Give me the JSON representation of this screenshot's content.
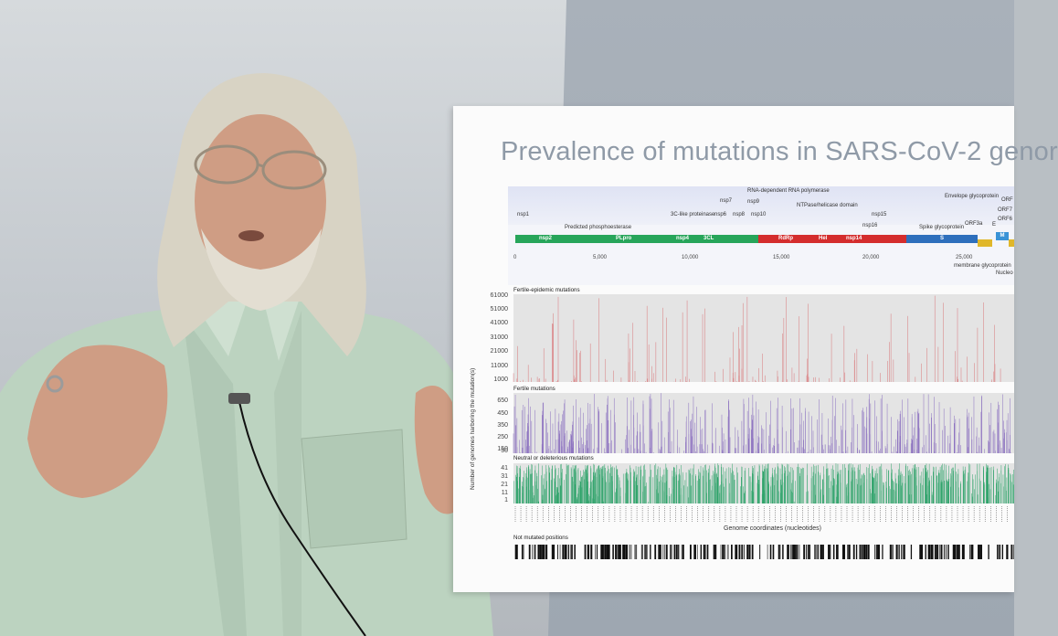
{
  "slide": {
    "title": "Prevalence of mutations in SARS-CoV-2 genor",
    "genome_map": {
      "labels": {
        "nsp1": "nsp1",
        "nsp7": "nsp7",
        "nsp9": "nsp9",
        "rdrp_full": "RNA-dependent RNA polymerase",
        "envelope": "Envelope glycoprotein",
        "orf_top": "ORF",
        "predicted": "Predicted phosphoesterase",
        "three_c": "3C-like proteinase",
        "nsp6": "nsp6",
        "nsp8": "nsp8",
        "nsp10": "nsp10",
        "ntpase": "NTPase/helicase domain",
        "nsp15": "nsp15",
        "orf7": "ORF7",
        "orf6": "ORF6",
        "orf3a": "ORF3a",
        "e": "E",
        "nsp16": "nsp16",
        "spike": "Spike glycoprotein",
        "membrane": "membrane glycoprotein",
        "nucleo": "Nucleo"
      },
      "genes": {
        "nsp2": "nsp2",
        "plpro": "PLpro",
        "nsp4": "nsp4",
        "cl3": "3CL",
        "rdrp": "RdRp",
        "hel": "Hel",
        "nsp14": "nsp14",
        "s": "S",
        "m": "M"
      },
      "ticks": [
        "0",
        "5,000",
        "10,000",
        "15,000",
        "20,000",
        "25,000"
      ]
    },
    "panels": {
      "fertile_epidemic": {
        "label": "Fertile-epidemic mutations",
        "yticks": [
          "61000",
          "51000",
          "41000",
          "31000",
          "21000",
          "11000",
          "1000"
        ]
      },
      "fertile": {
        "label": "Fertile mutations",
        "yticks": [
          "650",
          "450",
          "350",
          "250",
          "150",
          "50"
        ]
      },
      "neutral": {
        "label": "Neutral or deleterious mutations",
        "yticks": [
          "41",
          "31",
          "21",
          "11",
          "1"
        ]
      }
    },
    "y_axis_title": "Number of genomes harboring the mutation(s)",
    "x_axis_title": "Genome coordinates (nucleotides)",
    "not_mutated_label": "Not mutated positions"
  },
  "colors": {
    "epidemic_bars": "#d9777a",
    "fertile_bars": "#8a6fbf",
    "neutral_bars": "#2ea36a",
    "nsp_green": "#27a55a",
    "rdrp_red": "#d42d2d",
    "spike_blue": "#2e6fbc",
    "shirt": "#bcd3c0",
    "hair": "#d8d3c4",
    "skin": "#cf9d84"
  }
}
